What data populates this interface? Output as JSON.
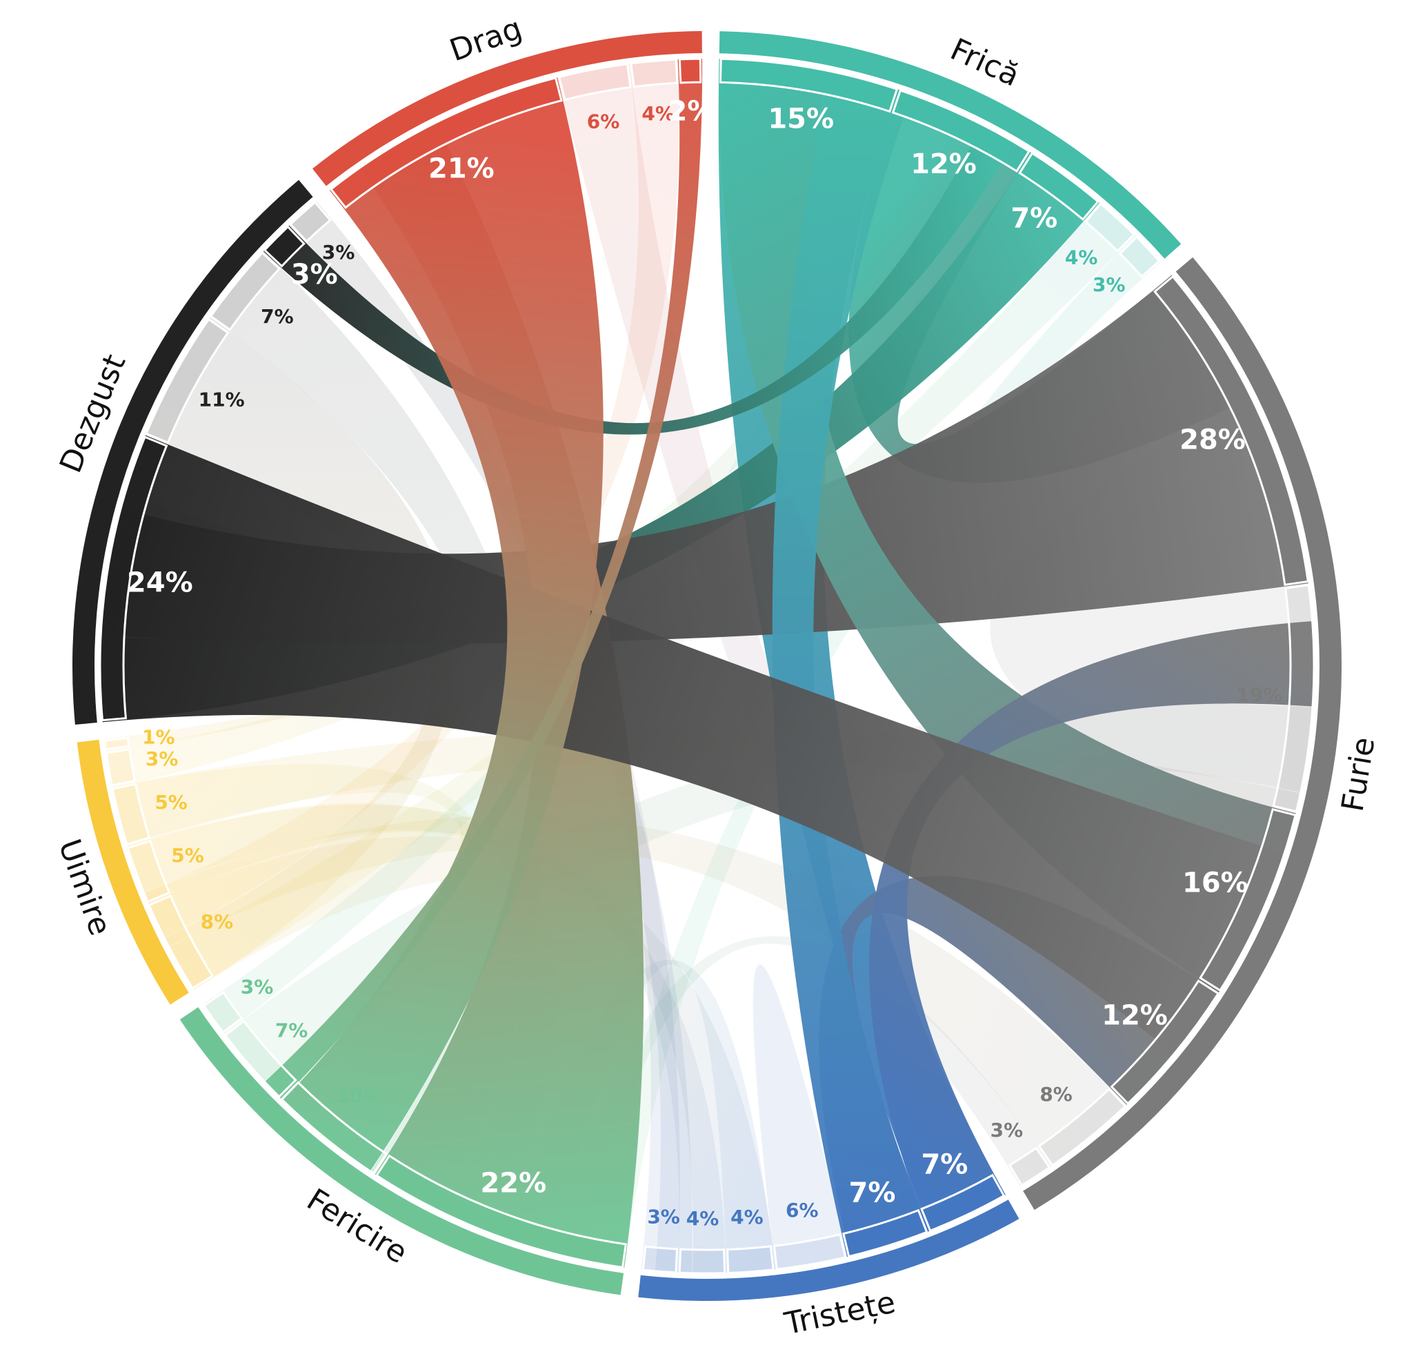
{
  "chart_data": {
    "type": "chord",
    "title": "",
    "groups": [
      {
        "name": "Frică",
        "color": "#45bda9"
      },
      {
        "name": "Furie",
        "color": "#7b7b7b"
      },
      {
        "name": "Tristețe",
        "color": "#4577c1"
      },
      {
        "name": "Fericire",
        "color": "#6fc495"
      },
      {
        "name": "Uimire",
        "color": "#f8c93d"
      },
      {
        "name": "Dezgust",
        "color": "#222222"
      },
      {
        "name": "Drag",
        "color": "#dc5040"
      }
    ],
    "segment_labels": [
      {
        "group": "Frică",
        "labels": [
          "15%",
          "12%",
          "7%",
          "4%",
          "3%"
        ]
      },
      {
        "group": "Furie",
        "labels": [
          "28%",
          "19%",
          "16%",
          "12%",
          "8%",
          "3%"
        ]
      },
      {
        "group": "Tristețe",
        "labels": [
          "7%",
          "7%",
          "6%",
          "4%",
          "4%",
          "3%"
        ]
      },
      {
        "group": "Fericire",
        "labels": [
          "22%",
          "10%",
          "7%",
          "3%"
        ]
      },
      {
        "group": "Uimire",
        "labels": [
          "8%",
          "5%",
          "5%",
          "3%",
          "1%"
        ]
      },
      {
        "group": "Dezgust",
        "labels": [
          "24%",
          "11%",
          "7%",
          "3%",
          "3%"
        ]
      },
      {
        "group": "Drag",
        "labels": [
          "21%",
          "6%",
          "4%",
          "2%"
        ]
      }
    ],
    "links": [
      {
        "source": "Frică",
        "target": "Tristețe",
        "value": 15
      },
      {
        "source": "Frică",
        "target": "Furie",
        "value": 12
      },
      {
        "source": "Frică",
        "target": "Dezgust",
        "value": 7
      },
      {
        "source": "Frică",
        "target": "Uimire",
        "value": 4
      },
      {
        "source": "Frică",
        "target": "Fericire",
        "value": 3
      },
      {
        "source": "Furie",
        "target": "Dezgust",
        "value": 28
      },
      {
        "source": "Furie",
        "target": "Furie",
        "value": 19
      },
      {
        "source": "Furie",
        "target": "Frică",
        "value": 16
      },
      {
        "source": "Furie",
        "target": "Tristețe",
        "value": 12
      },
      {
        "source": "Furie",
        "target": "Uimire",
        "value": 8
      },
      {
        "source": "Furie",
        "target": "Fericire",
        "value": 3
      },
      {
        "source": "Tristețe",
        "target": "Furie",
        "value": 7
      },
      {
        "source": "Tristețe",
        "target": "Frică",
        "value": 7
      },
      {
        "source": "Tristețe",
        "target": "Tristețe",
        "value": 6
      },
      {
        "source": "Tristețe",
        "target": "Fericire",
        "value": 4
      },
      {
        "source": "Tristețe",
        "target": "Uimire",
        "value": 4
      },
      {
        "source": "Tristețe",
        "target": "Drag",
        "value": 3
      },
      {
        "source": "Fericire",
        "target": "Drag",
        "value": 22
      },
      {
        "source": "Fericire",
        "target": "Uimire",
        "value": 10
      },
      {
        "source": "Fericire",
        "target": "Furie",
        "value": 7
      },
      {
        "source": "Fericire",
        "target": "Frică",
        "value": 3
      },
      {
        "source": "Uimire",
        "target": "Tristețe",
        "value": 8
      },
      {
        "source": "Uimire",
        "target": "Fericire",
        "value": 5
      },
      {
        "source": "Uimire",
        "target": "Furie",
        "value": 5
      },
      {
        "source": "Uimire",
        "target": "Frică",
        "value": 3
      },
      {
        "source": "Uimire",
        "target": "Dezgust",
        "value": 1
      },
      {
        "source": "Dezgust",
        "target": "Furie",
        "value": 24
      },
      {
        "source": "Dezgust",
        "target": "Uimire",
        "value": 11
      },
      {
        "source": "Dezgust",
        "target": "Fericire",
        "value": 7
      },
      {
        "source": "Dezgust",
        "target": "Frică",
        "value": 3
      },
      {
        "source": "Dezgust",
        "target": "Tristețe",
        "value": 3
      },
      {
        "source": "Drag",
        "target": "Fericire",
        "value": 21
      },
      {
        "source": "Drag",
        "target": "Tristețe",
        "value": 6
      },
      {
        "source": "Drag",
        "target": "Uimire",
        "value": 4
      },
      {
        "source": "Drag",
        "target": "Fericire",
        "value": 2
      }
    ],
    "highlighted_links": [
      "Frică→Tristețe",
      "Frică→Furie",
      "Frică→Dezgust",
      "Furie→Dezgust",
      "Furie→Frică",
      "Furie→Tristețe",
      "Tristețe→Furie",
      "Tristețe→Frică",
      "Fericire→Drag",
      "Dezgust→Furie",
      "Dezgust→Frică",
      "Drag→Fericire"
    ]
  }
}
